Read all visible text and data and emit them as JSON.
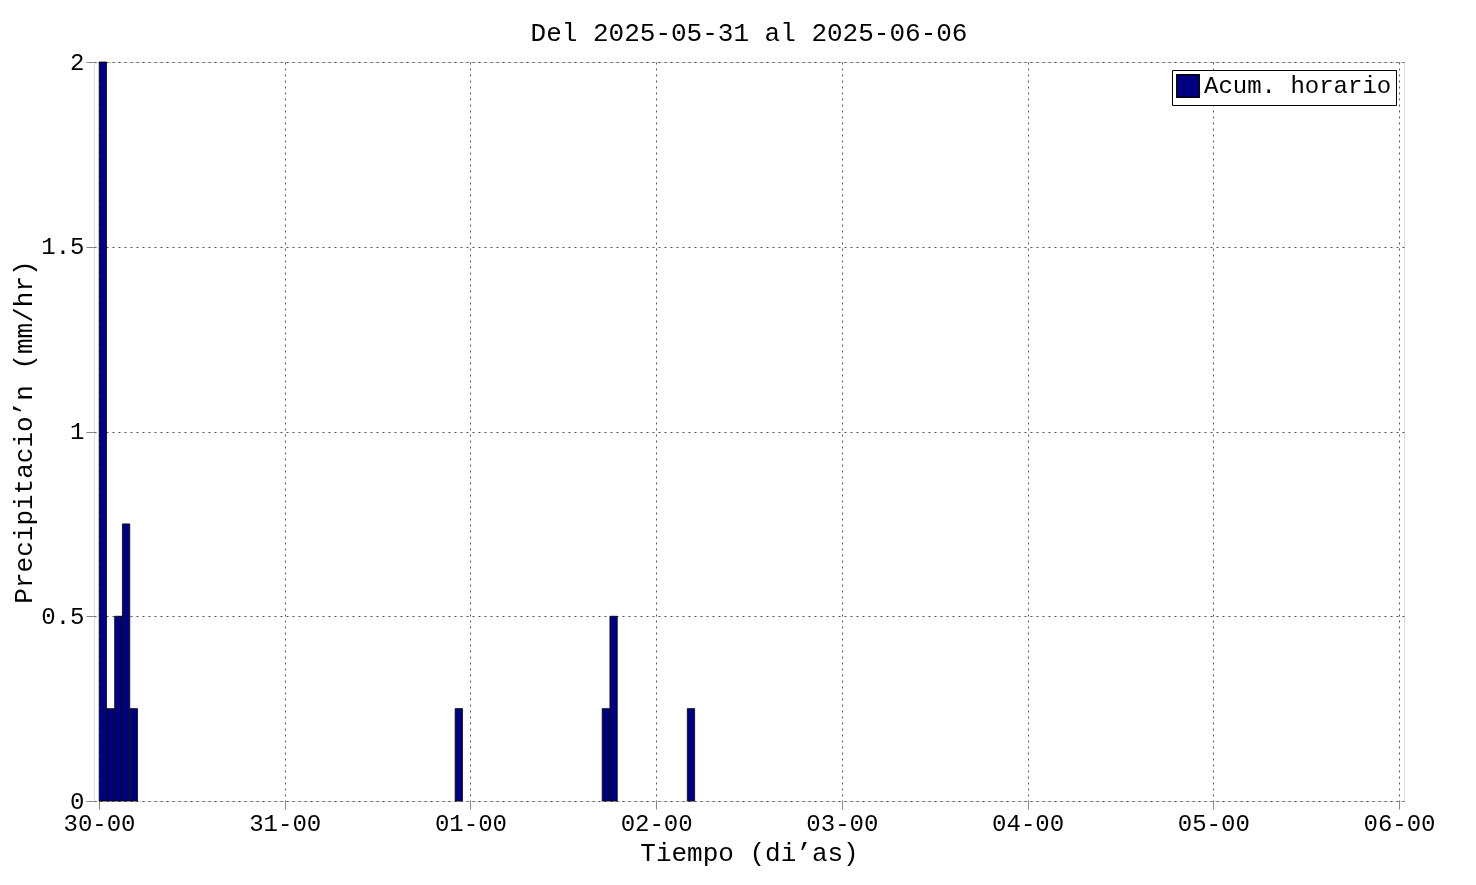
{
  "chart_data": {
    "type": "bar",
    "title": "Del 2025-05-31 al 2025-06-06",
    "xlabel": "Tiempo (di’as)",
    "ylabel": "Precipitacio’n (mm/hr)",
    "x": [
      "2025-05-30T00:30",
      "2025-05-30T01:30",
      "2025-05-30T02:30",
      "2025-05-30T03:30",
      "2025-05-30T04:30",
      "2025-05-31T22:30",
      "2025-06-01T17:30",
      "2025-06-01T18:30",
      "2025-06-02T04:30"
    ],
    "series": [
      {
        "name": "Acum. horario",
        "color": "#000080",
        "values": [
          2,
          0.25,
          0.5,
          0.75,
          0.25,
          0.25,
          0.25,
          0.5,
          0.25
        ]
      }
    ],
    "xlim": [
      "2025-05-30T00:00",
      "2025-06-06T00:00"
    ],
    "xticks": [
      {
        "value": "2025-05-30T00:00",
        "label": "30-00"
      },
      {
        "value": "2025-05-31T00:00",
        "label": "31-00"
      },
      {
        "value": "2025-06-01T00:00",
        "label": "01-00"
      },
      {
        "value": "2025-06-02T00:00",
        "label": "02-00"
      },
      {
        "value": "2025-06-03T00:00",
        "label": "03-00"
      },
      {
        "value": "2025-06-04T00:00",
        "label": "04-00"
      },
      {
        "value": "2025-06-05T00:00",
        "label": "05-00"
      },
      {
        "value": "2025-06-06T00:00",
        "label": "06-00"
      }
    ],
    "ylim": [
      0,
      2
    ],
    "yticks": [
      0,
      0.5,
      1,
      1.5,
      2
    ],
    "grid": true,
    "legend": "top right"
  }
}
